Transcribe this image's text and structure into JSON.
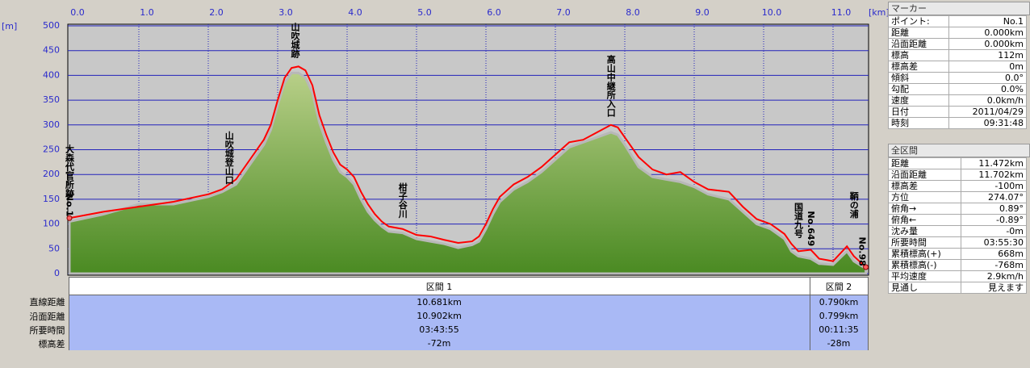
{
  "chart_data": {
    "type": "area",
    "x_unit": "[km]",
    "y_unit": "[m]",
    "xlim": [
      0,
      11.472
    ],
    "ylim": [
      0,
      500
    ],
    "xticks": [
      {
        "value": 0,
        "label": "0.0"
      },
      {
        "value": 1,
        "label": "1.0"
      },
      {
        "value": 2,
        "label": "2.0"
      },
      {
        "value": 3,
        "label": "3.0"
      },
      {
        "value": 4,
        "label": "4.0"
      },
      {
        "value": 5,
        "label": "5.0"
      },
      {
        "value": 6,
        "label": "6.0"
      },
      {
        "value": 7,
        "label": "7.0"
      },
      {
        "value": 8,
        "label": "8.0"
      },
      {
        "value": 9,
        "label": "9.0"
      },
      {
        "value": 10,
        "label": "10.0"
      },
      {
        "value": 11,
        "label": "11.0"
      }
    ],
    "yticks": [
      0,
      50,
      100,
      150,
      200,
      250,
      300,
      350,
      400,
      450,
      500
    ],
    "grid": true,
    "x": [
      0,
      0.5,
      1.0,
      1.5,
      2.0,
      2.2,
      2.4,
      2.6,
      2.8,
      2.9,
      3.0,
      3.1,
      3.2,
      3.3,
      3.4,
      3.5,
      3.6,
      3.7,
      3.8,
      3.9,
      4.0,
      4.1,
      4.2,
      4.3,
      4.4,
      4.5,
      4.6,
      4.8,
      5.0,
      5.2,
      5.4,
      5.6,
      5.8,
      5.9,
      6.0,
      6.1,
      6.2,
      6.4,
      6.6,
      6.8,
      7.0,
      7.2,
      7.4,
      7.6,
      7.8,
      7.9,
      8.0,
      8.2,
      8.4,
      8.6,
      8.8,
      9.0,
      9.2,
      9.5,
      9.7,
      9.9,
      10.1,
      10.3,
      10.4,
      10.5,
      10.68,
      10.8,
      11.0,
      11.2,
      11.3,
      11.472
    ],
    "series": [
      {
        "kind": "area",
        "color": "#5f9c2e",
        "values": [
          105,
          120,
          140,
          140,
          155,
          165,
          180,
          220,
          260,
          290,
          340,
          385,
          405,
          405,
          395,
          365,
          305,
          265,
          230,
          205,
          195,
          180,
          150,
          125,
          108,
          95,
          85,
          82,
          70,
          65,
          60,
          52,
          58,
          65,
          90,
          120,
          145,
          170,
          185,
          205,
          230,
          255,
          265,
          275,
          285,
          280,
          260,
          215,
          195,
          190,
          185,
          175,
          160,
          150,
          125,
          100,
          90,
          70,
          45,
          35,
          30,
          20,
          18,
          45,
          25,
          10
        ]
      },
      {
        "kind": "line",
        "color": "#ff0000",
        "values": [
          112,
          125,
          135,
          145,
          160,
          170,
          190,
          230,
          270,
          300,
          350,
          395,
          415,
          418,
          410,
          380,
          320,
          280,
          245,
          220,
          210,
          195,
          165,
          140,
          120,
          105,
          95,
          90,
          78,
          75,
          68,
          62,
          65,
          75,
          100,
          130,
          155,
          180,
          195,
          215,
          240,
          265,
          270,
          285,
          300,
          295,
          275,
          235,
          210,
          200,
          205,
          185,
          170,
          165,
          135,
          110,
          100,
          80,
          60,
          45,
          48,
          30,
          25,
          55,
          35,
          13
        ]
      }
    ],
    "annotations": [
      {
        "text": "大森代官所跡",
        "x": 0,
        "y": 153
      },
      {
        "text": "No.1",
        "x": 0,
        "y": 115
      },
      {
        "text": "山吹城登山口",
        "x": 2.3,
        "y": 180
      },
      {
        "text": "山吹城跡",
        "x": 3.25,
        "y": 435
      },
      {
        "text": "柑子谷川",
        "x": 4.8,
        "y": 112
      },
      {
        "text": "高山中継所入口",
        "x": 7.8,
        "y": 316
      },
      {
        "text": "国道九号",
        "x": 10.5,
        "y": 72
      },
      {
        "text": "No.649",
        "x": 10.68,
        "y": 55
      },
      {
        "text": "鞆の浦",
        "x": 11.3,
        "y": 112
      },
      {
        "text": "No.98",
        "x": 11.42,
        "y": 15
      }
    ]
  },
  "section_table": {
    "headers": [
      "区間 1",
      "区間 2"
    ],
    "row_labels": [
      "直線距離",
      "沿面距離",
      "所要時間",
      "標高差"
    ],
    "rows": [
      [
        "10.681km",
        "0.790km"
      ],
      [
        "10.902km",
        "0.799km"
      ],
      [
        "03:43:55",
        "00:11:35"
      ],
      [
        "-72m",
        "-28m"
      ]
    ]
  },
  "marker_panel": {
    "title": "マーカー",
    "rows": [
      [
        "ポイント:",
        "No.1"
      ],
      [
        "距離",
        "0.000km"
      ],
      [
        "沿面距離",
        "0.000km"
      ],
      [
        "標高",
        "112m"
      ],
      [
        "標高差",
        "0m"
      ],
      [
        "傾斜",
        "0.0°"
      ],
      [
        "勾配",
        "0.0%"
      ],
      [
        "速度",
        "0.0km/h"
      ],
      [
        "日付",
        "2011/04/29"
      ],
      [
        "時刻",
        "09:31:48"
      ]
    ]
  },
  "total_panel": {
    "title": "全区間",
    "rows": [
      [
        "距離",
        "11.472km"
      ],
      [
        "沿面距離",
        "11.702km"
      ],
      [
        "標高差",
        "-100m"
      ],
      [
        "方位",
        "274.07°"
      ],
      [
        "俯角→",
        "0.89°"
      ],
      [
        "俯角←",
        "-0.89°"
      ],
      [
        "沈み量",
        "-0m"
      ],
      [
        "所要時間",
        "03:55:30"
      ],
      [
        "累積標高(+)",
        "668m"
      ],
      [
        "累積標高(-)",
        "-768m"
      ],
      [
        "平均速度",
        "2.9km/h"
      ],
      [
        "見通し",
        "見えます"
      ]
    ]
  }
}
